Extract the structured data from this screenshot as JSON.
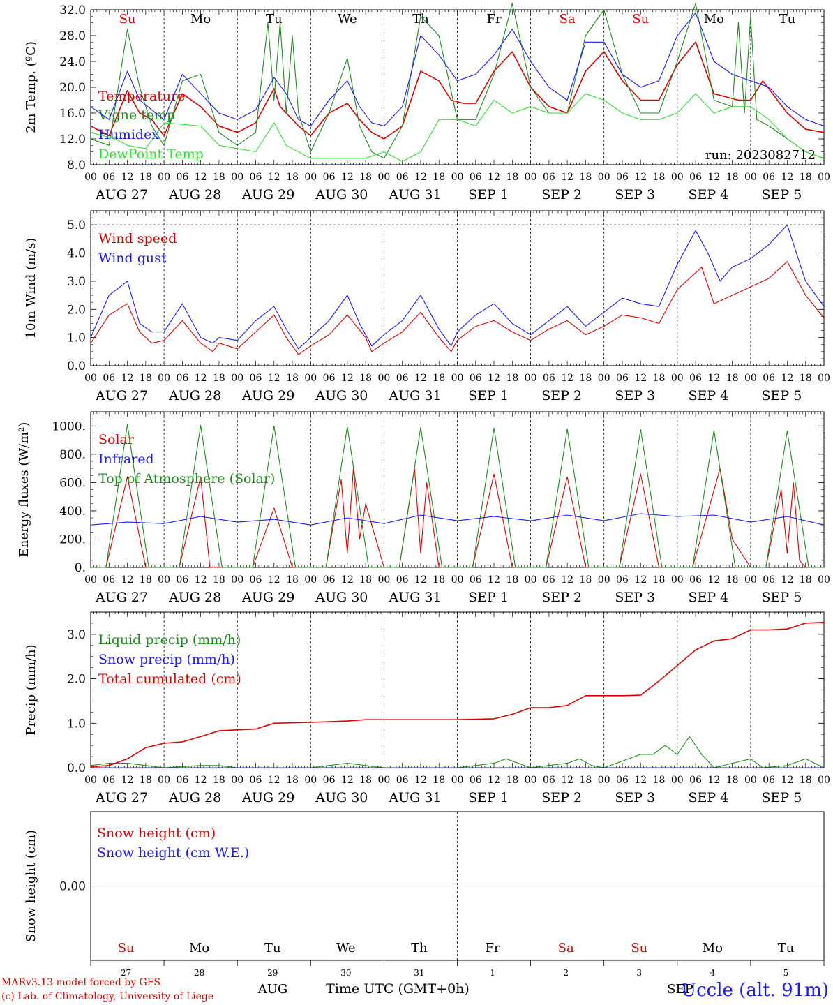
{
  "footer": {
    "model": "MARv3.13 model forced by GFS",
    "lab": "(c) Lab. of Climatology, University of Liege",
    "station": "Uccle (alt. 91m)"
  },
  "colors": {
    "red": "#e00000",
    "blue": "#1a1aff",
    "green": "#1e8c1e",
    "lightgreen": "#33dd33",
    "purple": "#8000a0"
  },
  "days": {
    "weekdays": [
      "Su",
      "Mo",
      "Tu",
      "We",
      "Th",
      "Fr",
      "Sa",
      "Su",
      "Mo",
      "Tu"
    ],
    "weekday_colors": [
      "#e00000",
      "#000000",
      "#000000",
      "#000000",
      "#000000",
      "#000000",
      "#e00000",
      "#e00000",
      "#000000",
      "#000000"
    ],
    "dates": [
      "AUG 27",
      "AUG 28",
      "AUG 29",
      "AUG 30",
      "AUG 31",
      "SEP  1",
      "SEP  2",
      "SEP  3",
      "SEP  4",
      "SEP  5"
    ],
    "day_numbers": [
      "27",
      "28",
      "29",
      "30",
      "31",
      "1",
      "2",
      "3",
      "4",
      "5"
    ],
    "hour_ticks": [
      "00",
      "06",
      "12",
      "18"
    ],
    "final_tick": "00"
  },
  "bottom_axis": {
    "month_left": "AUG",
    "month_right": "SEP",
    "label": "Time UTC (GMT+0h)"
  },
  "chart_data": [
    {
      "type": "line",
      "ylabel": "2m Temp. (ºC)",
      "ylim": [
        8,
        32
      ],
      "yticks": [
        "8.0",
        "12.0",
        "16.0",
        "20.0",
        "24.0",
        "28.0",
        "32.0"
      ],
      "annotation": "run: 2023082712",
      "x_unit": "hours since 2023-08-27 00 UTC",
      "series": [
        {
          "name": "Temperature",
          "color": "#e00000",
          "x": [
            0,
            6,
            12,
            16,
            20,
            24,
            30,
            36,
            42,
            48,
            54,
            60,
            62,
            64,
            68,
            72,
            78,
            84,
            88,
            92,
            96,
            102,
            108,
            114,
            118,
            122,
            126,
            132,
            138,
            144,
            150,
            156,
            162,
            168,
            174,
            180,
            186,
            192,
            198,
            204,
            212,
            216,
            220,
            228,
            234,
            240
          ],
          "values": [
            14,
            12.5,
            19.5,
            16,
            15,
            12.5,
            19,
            17,
            14,
            13,
            14.5,
            19.8,
            17,
            16,
            14,
            12.5,
            16,
            17.5,
            15,
            13,
            12,
            14,
            22.5,
            21,
            18,
            17.5,
            17.5,
            22.5,
            25.5,
            20,
            17,
            16,
            22.5,
            25.5,
            21,
            18,
            18,
            23.5,
            27,
            19,
            18,
            18,
            21,
            16,
            13.5,
            13
          ]
        },
        {
          "name": "Vigne temp",
          "color": "#1e8c1e",
          "x": [
            0,
            6,
            12,
            16,
            20,
            24,
            30,
            36,
            42,
            48,
            54,
            58,
            60,
            62,
            64,
            66,
            68,
            72,
            78,
            84,
            88,
            92,
            96,
            102,
            108,
            114,
            120,
            126,
            132,
            138,
            144,
            150,
            156,
            162,
            168,
            174,
            180,
            186,
            192,
            198,
            204,
            210,
            212,
            214,
            216,
            218,
            222,
            228,
            234,
            240
          ],
          "values": [
            12,
            11,
            29,
            20,
            14,
            11,
            21,
            22,
            13,
            11,
            13,
            30,
            18,
            30,
            16,
            28,
            16,
            10,
            16,
            24.5,
            14,
            10,
            9,
            14,
            31,
            28,
            15,
            15,
            22,
            33,
            20,
            16,
            16,
            28,
            32,
            22,
            16,
            16,
            24,
            33,
            18,
            17,
            30,
            16,
            31,
            15,
            14,
            12,
            10,
            9
          ]
        },
        {
          "name": "Humidex",
          "color": "#1a1aff",
          "x": [
            0,
            6,
            12,
            16,
            20,
            24,
            30,
            36,
            42,
            48,
            54,
            60,
            64,
            68,
            72,
            78,
            84,
            88,
            92,
            96,
            102,
            108,
            114,
            120,
            126,
            132,
            138,
            144,
            150,
            156,
            162,
            168,
            174,
            180,
            186,
            192,
            198,
            204,
            210,
            216,
            222,
            228,
            234,
            240
          ],
          "values": [
            17,
            15,
            22.5,
            18,
            16.5,
            15,
            22,
            19,
            16,
            15,
            16.5,
            21.5,
            19,
            15,
            14,
            18,
            21,
            17,
            14.5,
            14,
            17,
            28,
            25,
            21,
            22,
            25,
            29,
            24,
            20,
            18,
            27,
            27,
            22,
            20,
            21,
            28,
            31.5,
            24,
            22,
            21,
            20,
            17,
            15,
            14
          ]
        },
        {
          "name": "DewPoint Temp",
          "color": "#33dd33",
          "x": [
            0,
            8,
            12,
            18,
            24,
            36,
            42,
            48,
            54,
            60,
            64,
            72,
            78,
            84,
            90,
            96,
            102,
            108,
            114,
            120,
            126,
            132,
            138,
            144,
            150,
            156,
            162,
            168,
            174,
            180,
            186,
            192,
            198,
            204,
            210,
            216,
            222,
            228,
            234,
            240
          ],
          "values": [
            13,
            12,
            11,
            10.5,
            14.5,
            14,
            11,
            10.5,
            10,
            14.5,
            11,
            9,
            9,
            9,
            9,
            10,
            8.5,
            10,
            15,
            15,
            14,
            18,
            16,
            17,
            16,
            16,
            19,
            18,
            16,
            15,
            15,
            16,
            19,
            16,
            17,
            17,
            15,
            12,
            10,
            9
          ]
        }
      ]
    },
    {
      "type": "line",
      "ylabel": "10m Wind (m/s)",
      "ylim": [
        0,
        5.5
      ],
      "yticks": [
        "0.0",
        "1.0",
        "2.0",
        "3.0",
        "4.0",
        "5.0"
      ],
      "series": [
        {
          "name": "Wind speed",
          "color": "#e00000",
          "x": [
            0,
            6,
            12,
            16,
            20,
            24,
            30,
            36,
            40,
            42,
            48,
            54,
            60,
            64,
            68,
            72,
            78,
            84,
            90,
            92,
            96,
            102,
            108,
            114,
            118,
            120,
            126,
            132,
            138,
            144,
            150,
            156,
            162,
            168,
            174,
            180,
            186,
            192,
            200,
            204,
            210,
            216,
            222,
            228,
            234,
            240
          ],
          "values": [
            0.8,
            1.8,
            2.2,
            1.2,
            0.8,
            0.9,
            1.6,
            0.8,
            0.5,
            0.8,
            0.6,
            1.2,
            1.8,
            1.0,
            0.4,
            0.7,
            1.1,
            1.8,
            1.0,
            0.5,
            0.8,
            1.2,
            1.9,
            1.0,
            0.5,
            0.9,
            1.4,
            1.6,
            1.2,
            0.9,
            1.3,
            1.6,
            1.1,
            1.4,
            1.8,
            1.7,
            1.5,
            2.7,
            3.5,
            2.2,
            2.5,
            2.8,
            3.1,
            3.7,
            2.5,
            1.7
          ]
        },
        {
          "name": "Wind gust",
          "color": "#1a1aff",
          "x": [
            0,
            6,
            12,
            16,
            20,
            24,
            30,
            36,
            40,
            42,
            48,
            54,
            60,
            64,
            68,
            72,
            78,
            84,
            88,
            92,
            96,
            102,
            108,
            114,
            118,
            120,
            126,
            132,
            138,
            144,
            150,
            156,
            162,
            168,
            174,
            180,
            186,
            192,
            198,
            202,
            206,
            210,
            216,
            222,
            228,
            234,
            240
          ],
          "values": [
            1.0,
            2.5,
            3.0,
            1.5,
            1.2,
            1.2,
            2.2,
            1.0,
            0.8,
            1.0,
            0.9,
            1.6,
            2.1,
            1.3,
            0.6,
            1.0,
            1.6,
            2.5,
            1.5,
            0.7,
            1.1,
            1.6,
            2.5,
            1.3,
            0.7,
            1.2,
            1.8,
            2.2,
            1.5,
            1.1,
            1.6,
            2.1,
            1.4,
            1.9,
            2.4,
            2.2,
            2.1,
            3.6,
            4.8,
            4.0,
            3.0,
            3.5,
            3.8,
            4.3,
            5.0,
            3.0,
            2.1
          ]
        }
      ]
    },
    {
      "type": "line",
      "ylabel": "Energy fluxes (W/m²)",
      "ylim": [
        0,
        1100
      ],
      "yticks": [
        "0.",
        "200.",
        "400.",
        "600.",
        "800.",
        "1000."
      ],
      "series": [
        {
          "name": "Solar",
          "color": "#e00000",
          "x": [
            0,
            5,
            12,
            18,
            24,
            29,
            36,
            39,
            40,
            42,
            48,
            53,
            60,
            66,
            72,
            77,
            82,
            84,
            86,
            88,
            90,
            96,
            101,
            106,
            108,
            110,
            114,
            120,
            125,
            132,
            138,
            144,
            149,
            156,
            162,
            168,
            173,
            180,
            186,
            192,
            197,
            206,
            210,
            216,
            221,
            226,
            228,
            230,
            232,
            234,
            240
          ],
          "values": [
            0,
            0,
            640,
            0,
            0,
            0,
            640,
            0,
            0,
            0,
            0,
            0,
            420,
            0,
            0,
            0,
            620,
            100,
            700,
            200,
            450,
            0,
            0,
            700,
            100,
            600,
            0,
            0,
            0,
            660,
            0,
            0,
            0,
            640,
            0,
            0,
            0,
            660,
            0,
            0,
            0,
            700,
            200,
            0,
            0,
            550,
            100,
            600,
            50,
            0,
            0
          ]
        },
        {
          "name": "Infrared",
          "color": "#1a1aff",
          "x": [
            0,
            12,
            24,
            36,
            48,
            60,
            72,
            84,
            96,
            108,
            120,
            132,
            144,
            156,
            168,
            180,
            192,
            204,
            216,
            228,
            240
          ],
          "values": [
            300,
            320,
            310,
            360,
            320,
            340,
            300,
            350,
            310,
            370,
            330,
            360,
            330,
            370,
            330,
            380,
            360,
            370,
            320,
            360,
            300
          ]
        },
        {
          "name": "Top of Atmosphere (Solar)",
          "color": "#1e8c1e",
          "x": [
            0,
            5,
            12,
            19,
            24,
            29,
            36,
            43,
            48,
            53,
            60,
            67,
            72,
            77,
            84,
            91,
            96,
            101,
            108,
            115,
            120,
            125,
            132,
            139,
            144,
            149,
            156,
            163,
            168,
            173,
            180,
            187,
            192,
            197,
            204,
            211,
            216,
            221,
            228,
            235,
            240
          ],
          "values": [
            0,
            0,
            1010,
            0,
            0,
            0,
            1005,
            0,
            0,
            0,
            1000,
            0,
            0,
            0,
            995,
            0,
            0,
            0,
            990,
            0,
            0,
            0,
            985,
            0,
            0,
            0,
            980,
            0,
            0,
            0,
            975,
            0,
            0,
            0,
            970,
            0,
            0,
            0,
            965,
            0,
            0
          ]
        }
      ]
    },
    {
      "type": "line",
      "ylabel": "Precip (mm/h)",
      "ylim": [
        0,
        3.5
      ],
      "yticks": [
        "0.0",
        "1.0",
        "2.0",
        "3.0"
      ],
      "series": [
        {
          "name": "Liquid precip (mm/h)",
          "color": "#1e8c1e",
          "x": [
            0,
            6,
            12,
            18,
            24,
            36,
            42,
            48,
            60,
            72,
            84,
            96,
            120,
            132,
            136,
            140,
            144,
            156,
            160,
            164,
            168,
            180,
            184,
            188,
            192,
            196,
            200,
            204,
            210,
            216,
            220,
            228,
            234,
            240
          ],
          "values": [
            0.05,
            0.1,
            0.1,
            0.05,
            0,
            0.05,
            0.05,
            0,
            0,
            0,
            0.1,
            0,
            0,
            0.1,
            0.2,
            0.1,
            0,
            0.1,
            0.2,
            0.05,
            0,
            0.3,
            0.3,
            0.5,
            0.3,
            0.7,
            0.3,
            0,
            0.1,
            0.2,
            0,
            0.05,
            0.2,
            0
          ]
        },
        {
          "name": "Snow precip (mm/h)",
          "color": "#1a1aff",
          "x": [
            0,
            240
          ],
          "values": [
            0,
            0
          ]
        },
        {
          "name": "Total cumulated (cm)",
          "color": "#e00000",
          "x": [
            0,
            6,
            12,
            18,
            24,
            30,
            36,
            42,
            48,
            54,
            60,
            72,
            84,
            90,
            96,
            108,
            120,
            132,
            138,
            144,
            150,
            156,
            162,
            168,
            174,
            180,
            186,
            192,
            198,
            204,
            210,
            216,
            222,
            228,
            234,
            240
          ],
          "values": [
            0.02,
            0.05,
            0.2,
            0.45,
            0.55,
            0.58,
            0.7,
            0.83,
            0.85,
            0.87,
            1.0,
            1.02,
            1.05,
            1.08,
            1.08,
            1.08,
            1.08,
            1.1,
            1.2,
            1.35,
            1.35,
            1.4,
            1.62,
            1.62,
            1.62,
            1.63,
            1.95,
            2.3,
            2.65,
            2.85,
            2.9,
            3.1,
            3.1,
            3.12,
            3.25,
            3.27
          ]
        }
      ]
    },
    {
      "type": "line",
      "ylabel": "Snow height (cm)",
      "ylim": [
        -1,
        1
      ],
      "yticks": [
        "0.00"
      ],
      "series": [
        {
          "name": "Snow height (cm)",
          "color": "#e00000",
          "x": [
            0,
            240
          ],
          "values": [
            0,
            0
          ]
        },
        {
          "name": "Snow height (cm W.E.)",
          "color": "#1a1aff",
          "x": [
            0,
            240
          ],
          "values": [
            0,
            0
          ]
        }
      ]
    }
  ]
}
